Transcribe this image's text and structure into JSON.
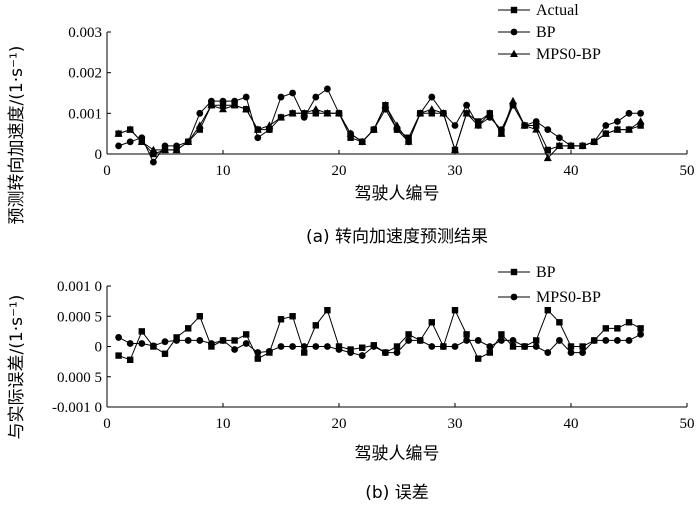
{
  "chart_data": [
    {
      "type": "line",
      "id": "a",
      "caption": "(a) 转向加速度预测结果",
      "xlabel": "驾驶人编号",
      "ylabel": "预测转向加速度",
      "ylabel_unit": "(1·s⁻¹)",
      "xlim": [
        0,
        50
      ],
      "ylim": [
        0,
        0.003
      ],
      "xticks": [
        "0",
        "10",
        "20",
        "30",
        "40",
        "50"
      ],
      "yticks": [
        "0",
        "0.001",
        "0.002",
        "0.003"
      ],
      "x": [
        1,
        2,
        3,
        4,
        5,
        6,
        7,
        8,
        9,
        10,
        11,
        12,
        13,
        14,
        15,
        16,
        17,
        18,
        19,
        20,
        21,
        22,
        23,
        24,
        25,
        26,
        27,
        28,
        29,
        30,
        31,
        32,
        33,
        34,
        35,
        36,
        37,
        38,
        39,
        40,
        41,
        42,
        43,
        44,
        45,
        46
      ],
      "series": [
        {
          "name": "Actual",
          "marker": "square",
          "values": [
            0.0005,
            0.0006,
            0.0003,
            0.0,
            0.0001,
            0.0001,
            0.0003,
            0.0006,
            0.0012,
            0.0012,
            0.0012,
            0.0011,
            0.0006,
            0.0006,
            0.0009,
            0.001,
            0.001,
            0.001,
            0.001,
            0.001,
            0.0004,
            0.0003,
            0.0006,
            0.0012,
            0.0006,
            0.0004,
            0.001,
            0.001,
            0.001,
            0.0001,
            0.001,
            0.0008,
            0.001,
            0.0005,
            0.0012,
            0.0007,
            0.0007,
            0.0001,
            0.0002,
            0.0002,
            0.0002,
            0.0003,
            0.0005,
            0.0006,
            0.0006,
            0.0007
          ]
        },
        {
          "name": "BP",
          "marker": "circle",
          "values": [
            0.0002,
            0.0003,
            0.0004,
            -0.0002,
            0.0002,
            0.0002,
            0.0003,
            0.001,
            0.0013,
            0.0013,
            0.0013,
            0.0014,
            0.0004,
            0.0006,
            0.0014,
            0.0015,
            0.0009,
            0.0014,
            0.0016,
            0.001,
            0.0005,
            0.0003,
            0.0006,
            0.0011,
            0.0006,
            0.0003,
            0.001,
            0.0014,
            0.001,
            0.0007,
            0.0012,
            0.0007,
            0.0009,
            0.0006,
            0.0012,
            0.0007,
            0.0008,
            0.0006,
            0.0004,
            0.0002,
            0.0002,
            0.0003,
            0.0007,
            0.0008,
            0.001,
            0.001
          ]
        },
        {
          "name": "MPS0-BP",
          "marker": "triangle",
          "values": [
            0.0005,
            0.0006,
            0.0003,
            0.0001,
            0.0001,
            0.0001,
            0.0003,
            0.0007,
            0.0012,
            0.0011,
            0.0012,
            0.0011,
            0.0006,
            0.0007,
            0.0009,
            0.001,
            0.001,
            0.0011,
            0.001,
            0.001,
            0.0005,
            0.0003,
            0.0006,
            0.0012,
            0.0007,
            0.0003,
            0.001,
            0.0011,
            0.001,
            0.0001,
            0.001,
            0.0007,
            0.001,
            0.0005,
            0.0013,
            0.0007,
            0.0006,
            -0.0001,
            0.0002,
            0.0002,
            0.0002,
            0.0003,
            0.0005,
            0.0006,
            0.0006,
            0.0008
          ]
        }
      ],
      "legend": "top-right"
    },
    {
      "type": "line",
      "id": "b",
      "caption": "(b) 误差",
      "xlabel": "驾驶人编号",
      "ylabel": "与实际误差",
      "ylabel_unit": "(1·s⁻¹)",
      "xlim": [
        0,
        50
      ],
      "ylim": [
        -0.001,
        0.001
      ],
      "xticks": [
        "0",
        "10",
        "20",
        "30",
        "40",
        "50"
      ],
      "yticks": [
        "0.001 0",
        "0.000 5",
        "0",
        "0.000 5",
        "-0.001 0"
      ],
      "x": [
        1,
        2,
        3,
        4,
        5,
        6,
        7,
        8,
        9,
        10,
        11,
        12,
        13,
        14,
        15,
        16,
        17,
        18,
        19,
        20,
        21,
        22,
        23,
        24,
        25,
        26,
        27,
        28,
        29,
        30,
        31,
        32,
        33,
        34,
        35,
        36,
        37,
        38,
        39,
        40,
        41,
        42,
        43,
        44,
        45,
        46
      ],
      "series": [
        {
          "name": "BP",
          "marker": "square",
          "values": [
            -0.00015,
            -0.00022,
            0.00025,
            0.0,
            -0.00012,
            0.00015,
            0.0003,
            0.0005,
            0.0,
            0.0001,
            0.0001,
            0.0002,
            -0.0002,
            -0.0001,
            0.00045,
            0.0005,
            -0.0001,
            0.00035,
            0.0006,
            0.0,
            -5e-05,
            -2e-05,
            2e-05,
            -0.0001,
            0.0,
            0.0002,
            0.0001,
            0.0004,
            0.0,
            0.0006,
            0.0002,
            -0.0002,
            -0.0001,
            0.0002,
            0.0,
            0.0,
            0.0001,
            0.0006,
            0.0004,
            0.0,
            0.0,
            0.0001,
            0.0003,
            0.0003,
            0.0004,
            0.0003
          ]
        },
        {
          "name": "MPS0-BP",
          "marker": "circle",
          "values": [
            0.00015,
            5e-05,
            5e-05,
            1e-05,
            8e-05,
            0.0001,
            0.0001,
            0.0001,
            5e-05,
            0.0001,
            -5e-05,
            5e-05,
            -0.0001,
            -8e-05,
            0.0,
            0.0,
            0.0,
            0.0,
            0.0,
            -5e-05,
            -0.0001,
            -0.00015,
            0.0,
            -0.0001,
            -0.0001,
            0.0001,
            0.0001,
            0.0,
            0.0,
            0.0,
            0.0001,
            0.0001,
            0.0,
            0.0001,
            0.0001,
            0.0,
            0.0,
            -0.0001,
            0.0001,
            -0.0001,
            -0.0001,
            0.0001,
            0.0001,
            0.0001,
            0.0001,
            0.0002
          ]
        }
      ],
      "legend": "top-right"
    }
  ]
}
